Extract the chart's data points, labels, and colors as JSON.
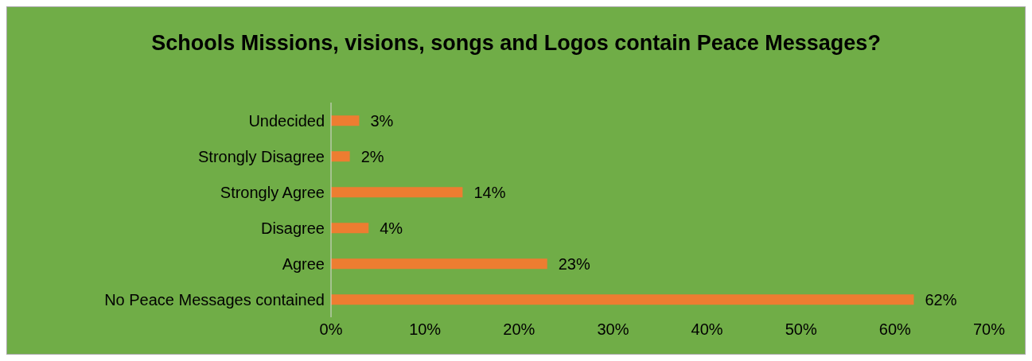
{
  "chart_data": {
    "type": "bar",
    "orientation": "horizontal",
    "title": "Schools Missions, visions, songs and Logos contain Peace Messages?",
    "categories": [
      "Undecided",
      "Strongly Disagree",
      "Strongly Agree",
      "Disagree",
      "Agree",
      "No Peace Messages contained"
    ],
    "values": [
      3,
      2,
      14,
      4,
      23,
      62
    ],
    "value_labels": [
      "3%",
      "2%",
      "14%",
      "4%",
      "23%",
      "62%"
    ],
    "color": "#ed7d31",
    "xlim": [
      0,
      70
    ],
    "xticks": [
      {
        "value": 0,
        "label": "0%"
      },
      {
        "value": 10,
        "label": "10%"
      },
      {
        "value": 20,
        "label": "20%"
      },
      {
        "value": 30,
        "label": "30%"
      },
      {
        "value": 40,
        "label": "40%"
      },
      {
        "value": 50,
        "label": "50%"
      },
      {
        "value": 60,
        "label": "60%"
      },
      {
        "value": 70,
        "label": "70%"
      }
    ]
  }
}
